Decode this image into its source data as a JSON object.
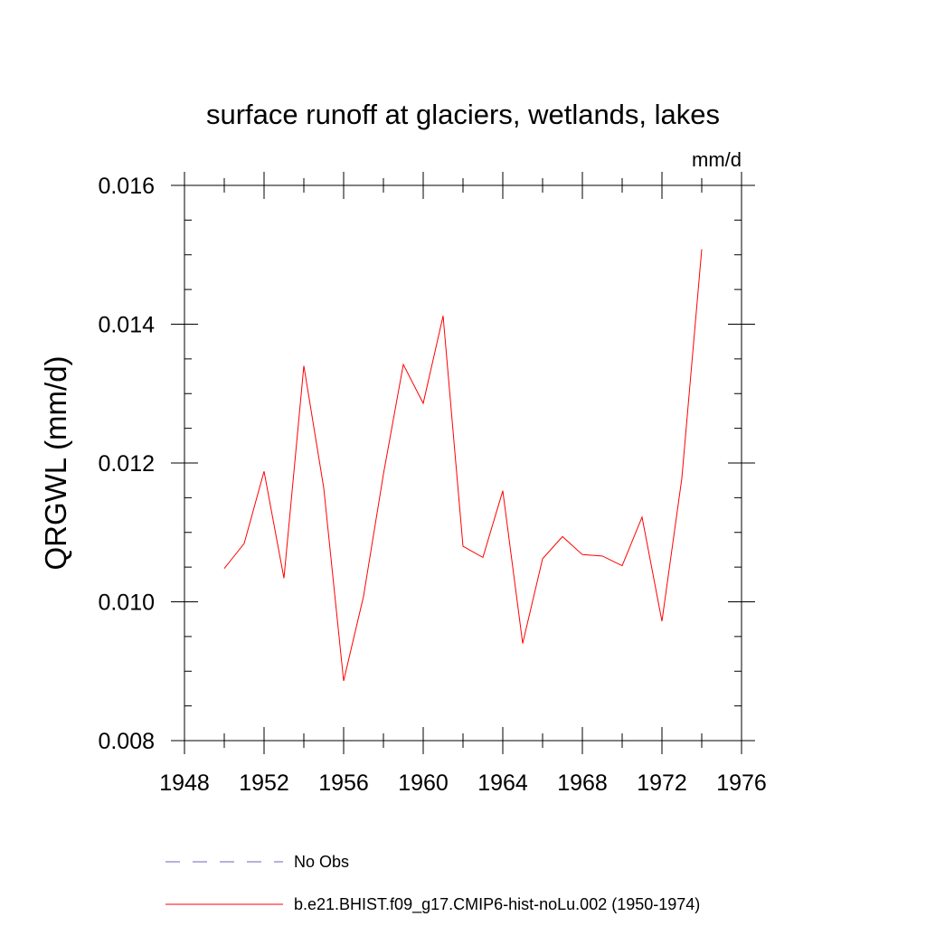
{
  "chart_data": {
    "type": "line",
    "title": "surface runoff at glaciers, wetlands, lakes",
    "units": "mm/d",
    "ylabel": "QRGWL  (mm/d)",
    "xlabel": "",
    "xlim": [
      1948,
      1976
    ],
    "ylim": [
      0.008,
      0.016
    ],
    "x_ticks": [
      1948,
      1952,
      1956,
      1960,
      1964,
      1968,
      1972,
      1976
    ],
    "x_tick_labels": [
      "1948",
      "1952",
      "1956",
      "1960",
      "1964",
      "1968",
      "1972",
      "1976"
    ],
    "x_minor_ticks": [
      1950,
      1954,
      1958,
      1962,
      1966,
      1970,
      1974
    ],
    "y_ticks": [
      0.008,
      0.01,
      0.012,
      0.014,
      0.016
    ],
    "y_tick_labels": [
      "0.008",
      "0.010",
      "0.012",
      "0.014",
      "0.016"
    ],
    "y_minor_step": 0.0005,
    "grid": false,
    "legend_position": "bottom",
    "series": [
      {
        "name": "b.e21.BHIST.f09_g17.CMIP6-hist-noLu.002 (1950-1974)",
        "color": "#ff0000",
        "style": "solid",
        "x": [
          1950,
          1951,
          1952,
          1953,
          1954,
          1955,
          1956,
          1957,
          1958,
          1959,
          1960,
          1961,
          1962,
          1963,
          1964,
          1965,
          1966,
          1967,
          1968,
          1969,
          1970,
          1971,
          1972,
          1973,
          1974
        ],
        "values": [
          0.01048,
          0.01084,
          0.01188,
          0.01034,
          0.0134,
          0.01164,
          0.00886,
          0.01008,
          0.01184,
          0.01342,
          0.01286,
          0.01412,
          0.0108,
          0.01064,
          0.0116,
          0.0094,
          0.01062,
          0.01094,
          0.01068,
          0.01066,
          0.01052,
          0.01122,
          0.00972,
          0.01178,
          0.01508
        ]
      }
    ],
    "legend": [
      {
        "label": "No Obs",
        "color": "#6a6ab8",
        "style": "dashed"
      },
      {
        "label": "b.e21.BHIST.f09_g17.CMIP6-hist-noLu.002 (1950-1974)",
        "color": "#ff0000",
        "style": "solid"
      }
    ]
  }
}
